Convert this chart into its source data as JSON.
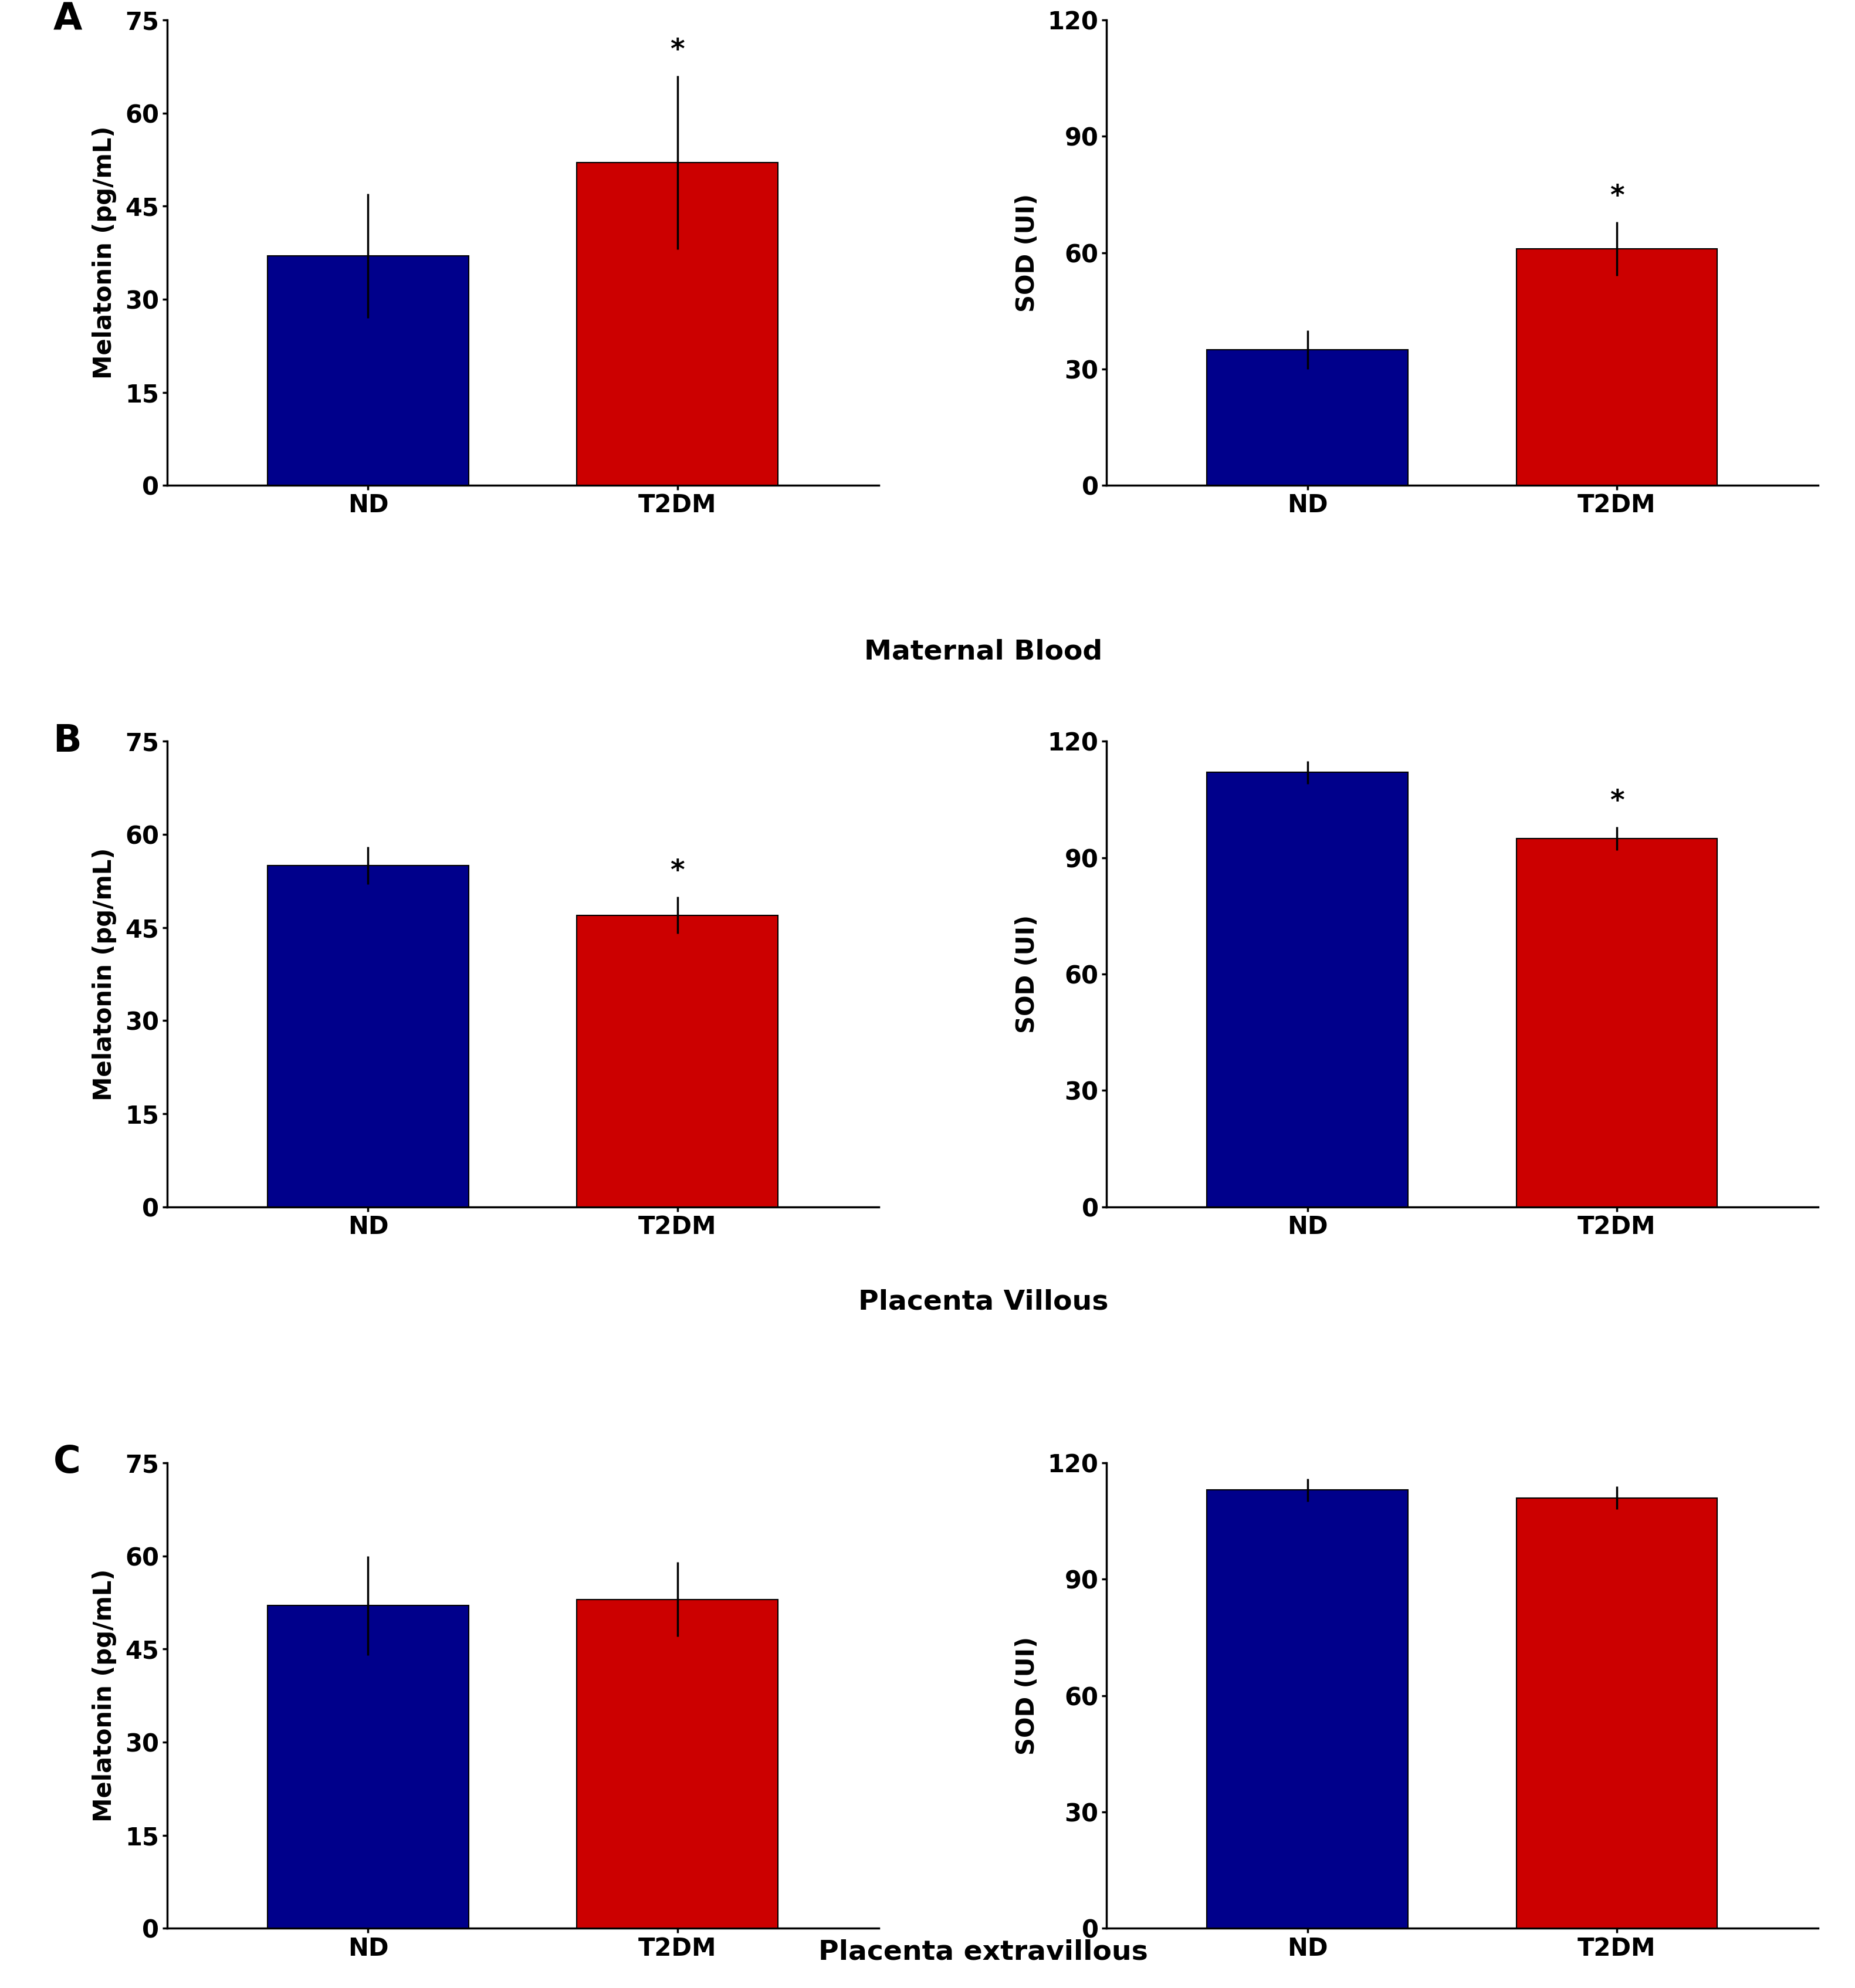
{
  "panels": [
    {
      "row": 0,
      "col": 0,
      "ylabel": "Melatonin (pg/mL)",
      "ylim": [
        0,
        75
      ],
      "yticks": [
        0,
        15,
        30,
        45,
        60,
        75
      ],
      "categories": [
        "ND",
        "T2DM"
      ],
      "bar_colors": [
        "#00008B",
        "#CC0000"
      ],
      "values": [
        37,
        52
      ],
      "errors": [
        10,
        14
      ],
      "sig": [
        false,
        true
      ]
    },
    {
      "row": 0,
      "col": 1,
      "ylabel": "SOD (UI)",
      "ylim": [
        0,
        120
      ],
      "yticks": [
        0,
        30,
        60,
        90,
        120
      ],
      "categories": [
        "ND",
        "T2DM"
      ],
      "bar_colors": [
        "#00008B",
        "#CC0000"
      ],
      "values": [
        35,
        61
      ],
      "errors": [
        5,
        7
      ],
      "sig": [
        false,
        true
      ]
    },
    {
      "row": 1,
      "col": 0,
      "ylabel": "Melatonin (pg/mL)",
      "ylim": [
        0,
        75
      ],
      "yticks": [
        0,
        15,
        30,
        45,
        60,
        75
      ],
      "categories": [
        "ND",
        "T2DM"
      ],
      "bar_colors": [
        "#00008B",
        "#CC0000"
      ],
      "values": [
        55,
        47
      ],
      "errors": [
        3,
        3
      ],
      "sig": [
        false,
        true
      ]
    },
    {
      "row": 1,
      "col": 1,
      "ylabel": "SOD (UI)",
      "ylim": [
        0,
        120
      ],
      "yticks": [
        0,
        30,
        60,
        90,
        120
      ],
      "categories": [
        "ND",
        "T2DM"
      ],
      "bar_colors": [
        "#00008B",
        "#CC0000"
      ],
      "values": [
        112,
        95
      ],
      "errors": [
        3,
        3
      ],
      "sig": [
        false,
        true
      ]
    },
    {
      "row": 2,
      "col": 0,
      "ylabel": "Melatonin (pg/mL)",
      "ylim": [
        0,
        75
      ],
      "yticks": [
        0,
        15,
        30,
        45,
        60,
        75
      ],
      "categories": [
        "ND",
        "T2DM"
      ],
      "bar_colors": [
        "#00008B",
        "#CC0000"
      ],
      "values": [
        52,
        53
      ],
      "errors": [
        8,
        6
      ],
      "sig": [
        false,
        false
      ]
    },
    {
      "row": 2,
      "col": 1,
      "ylabel": "SOD (UI)",
      "ylim": [
        0,
        120
      ],
      "yticks": [
        0,
        30,
        60,
        90,
        120
      ],
      "categories": [
        "ND",
        "T2DM"
      ],
      "bar_colors": [
        "#00008B",
        "#CC0000"
      ],
      "values": [
        113,
        111
      ],
      "errors": [
        3,
        3
      ],
      "sig": [
        false,
        false
      ]
    }
  ],
  "row_labels": [
    "Maternal Blood",
    "Placenta Villous",
    "Placenta extravillous"
  ],
  "row_panel_labels": [
    "A",
    "B",
    "C"
  ],
  "background_color": "#ffffff",
  "bar_width": 0.65,
  "row_label_fontsize": 34,
  "axis_fontsize": 30,
  "tick_fontsize": 30,
  "panel_label_fontsize": 46,
  "sig_fontsize": 34
}
